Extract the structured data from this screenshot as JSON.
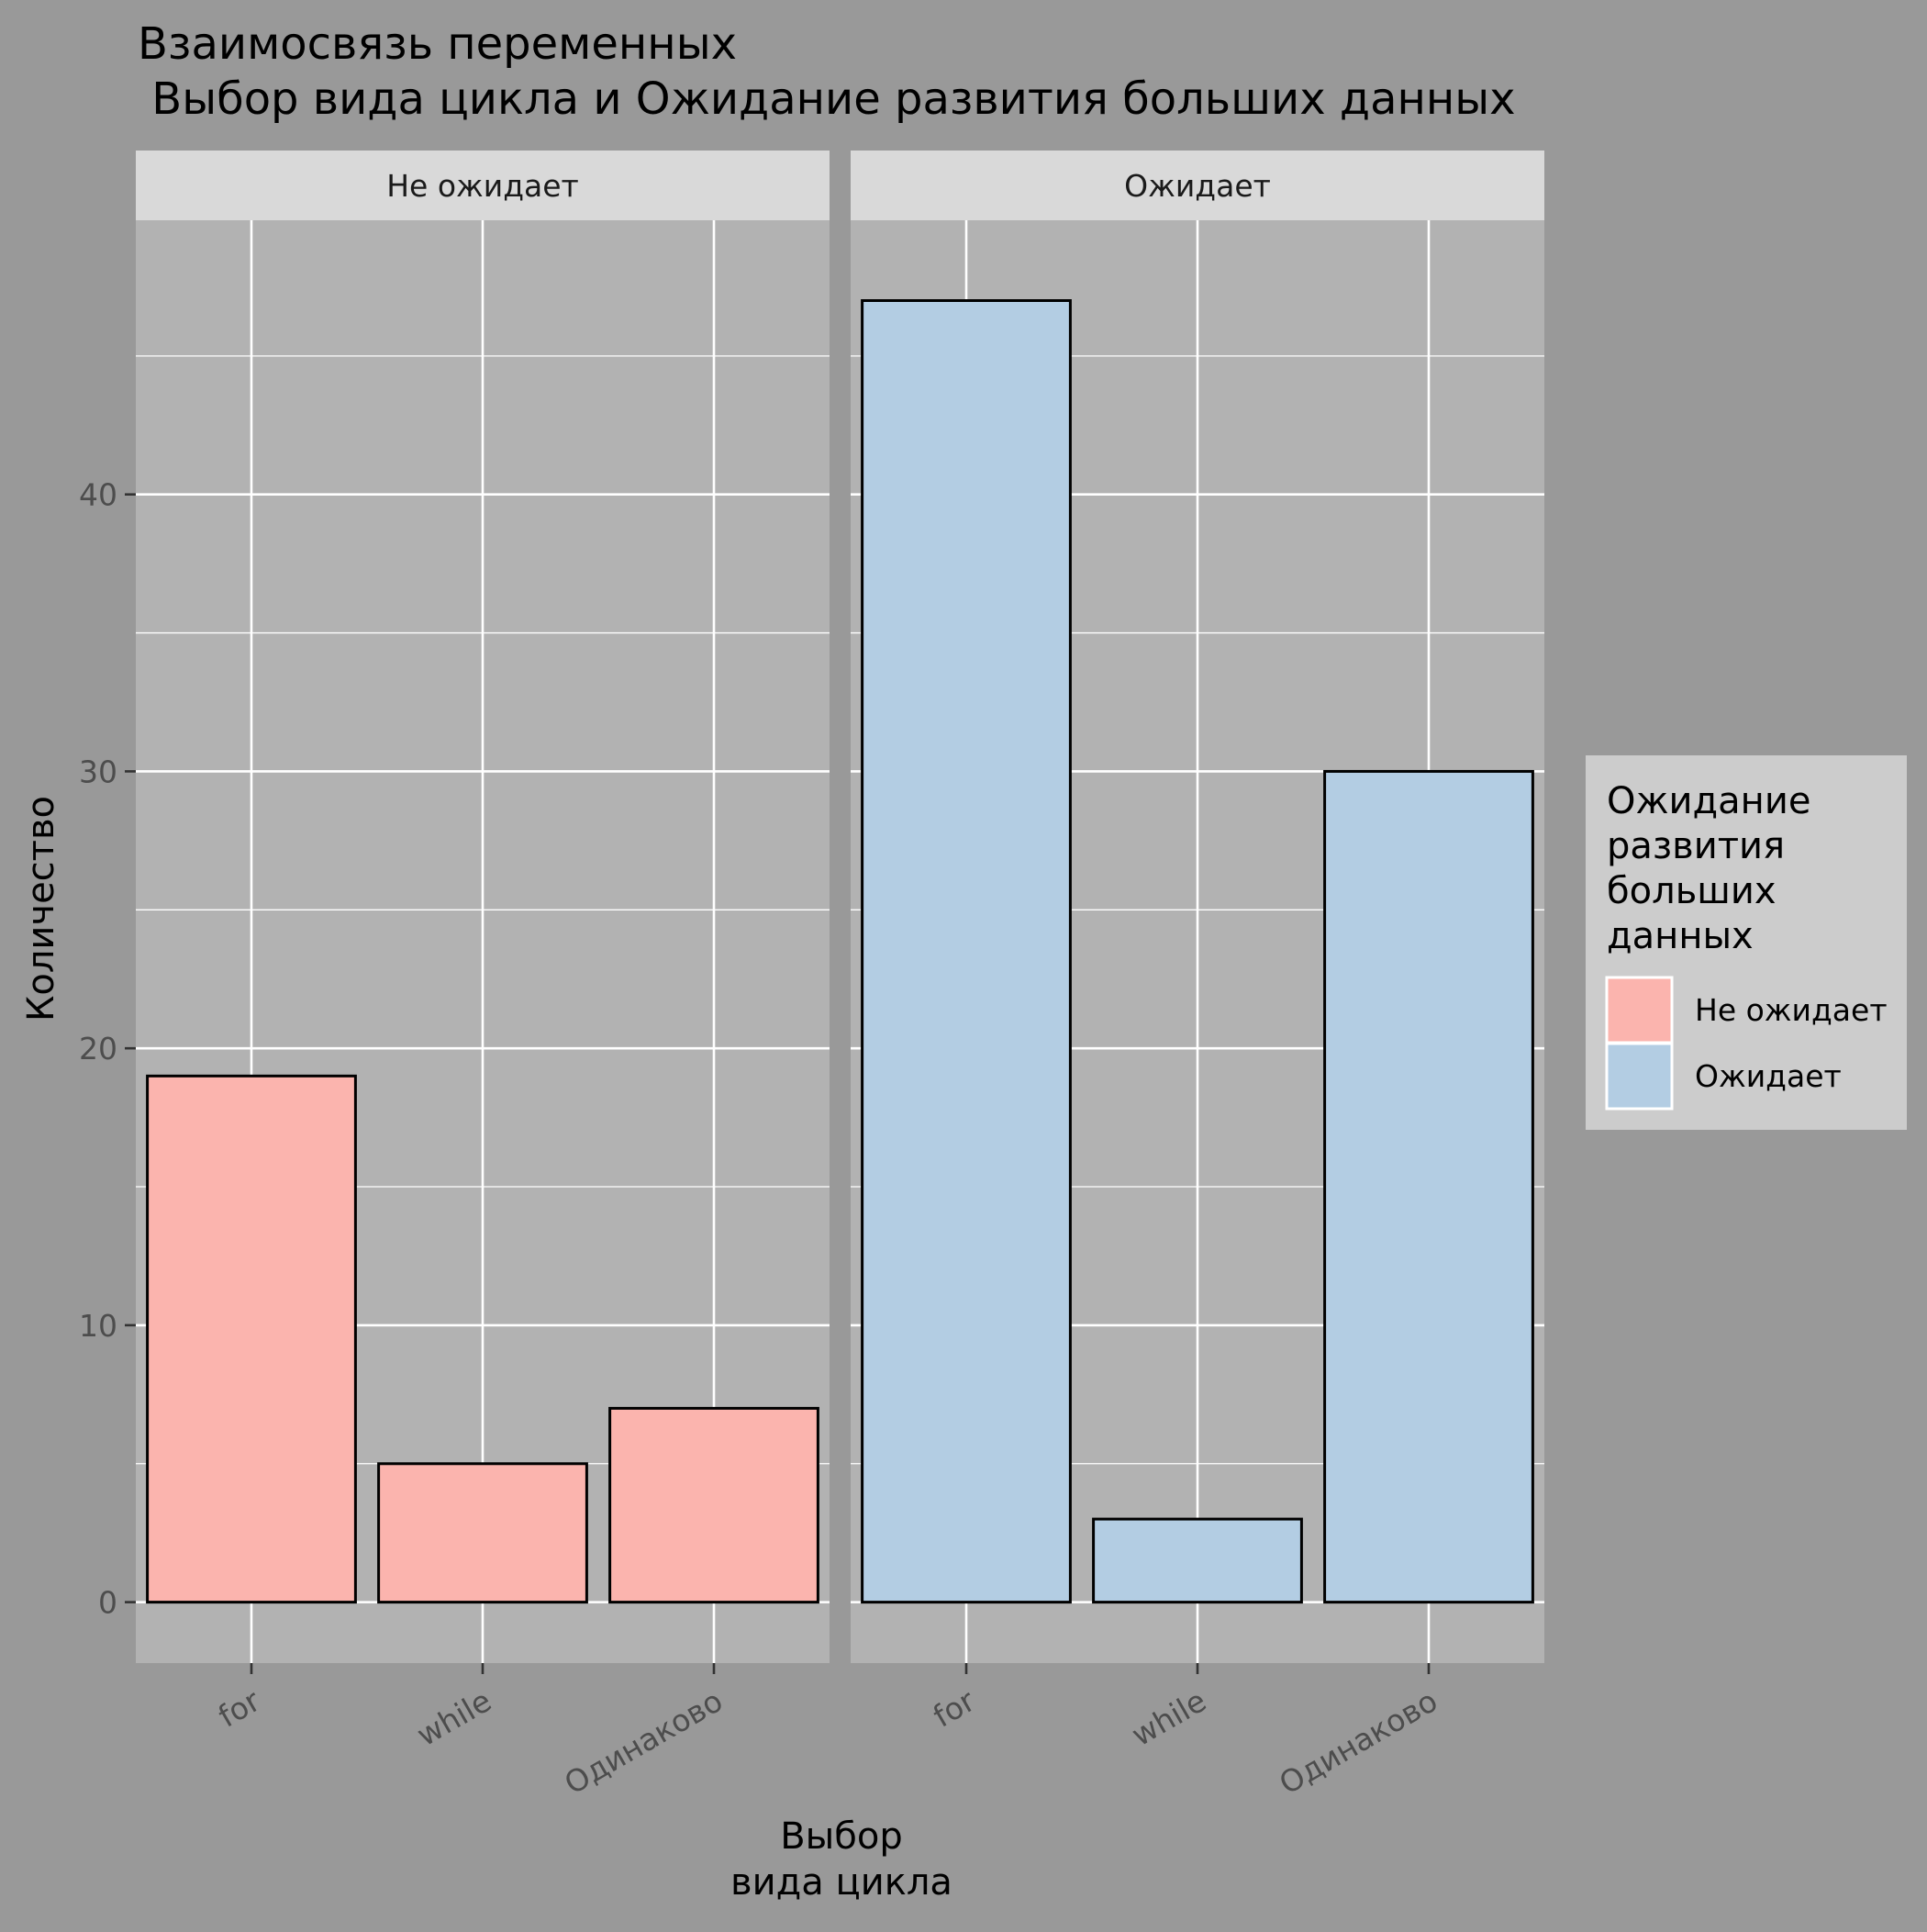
{
  "chart_data": {
    "type": "bar",
    "title_line1": "Взаимосвязь переменных",
    "title_line2": " Выбор вида цикла и Ожидание развития больших данных",
    "xlabel_line1": "Выбор",
    "xlabel_line2": "вида цикла",
    "ylabel": "Количество",
    "categories": [
      "for",
      "while",
      "Одинаково"
    ],
    "ylim": [
      -2.2,
      49.9
    ],
    "yticks": [
      0,
      10,
      20,
      30,
      40
    ],
    "grid": true,
    "legend_position": "right",
    "legend": {
      "title_lines": [
        "Ожидание",
        "развития",
        "больших",
        "данных"
      ],
      "entries": [
        "Не ожидает",
        "Ожидает"
      ]
    },
    "series": [
      {
        "name": "Не ожидает",
        "facet": "Не ожидает",
        "color": "#fbb4ae",
        "values": [
          19,
          5,
          7
        ]
      },
      {
        "name": "Ожидает",
        "facet": "Ожидает",
        "color": "#b3cde3",
        "values": [
          47,
          3,
          30
        ]
      }
    ],
    "colors": {
      "background": "#999999",
      "panel": "#b2b2b2",
      "strip": "#d9d9d9",
      "legend_box": "#cccccc",
      "grid": "#ffffff",
      "bar_outline": "#000000",
      "tick_label": "#4d4d4d",
      "text": "#000000"
    }
  }
}
